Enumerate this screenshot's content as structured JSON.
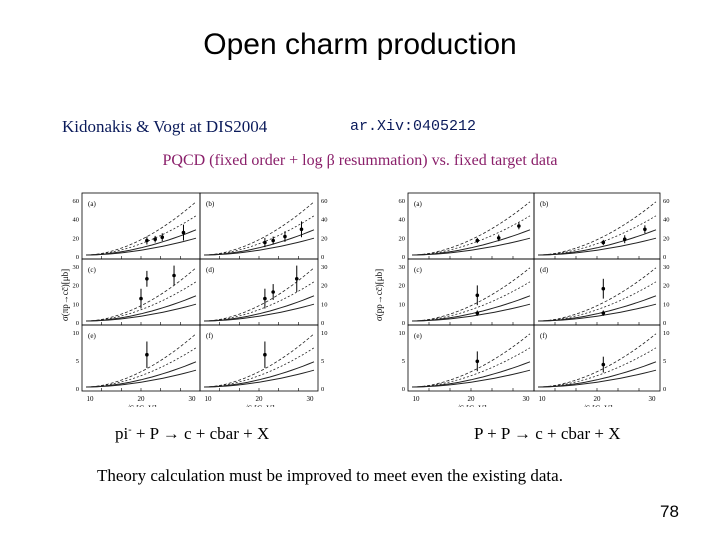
{
  "slide": {
    "title": "Open charm production",
    "authors": "Kidonakis & Vogt at DIS2004",
    "arxiv": "ar.Xiv:0405212",
    "subtitle_pre": "PQCD (fixed order + log ",
    "subtitle_beta": "β",
    "subtitle_post": " resummation) vs. fixed target data",
    "caption_left_a": "pi",
    "caption_left_sup": "-",
    "caption_left_b": " + P → c + cbar + X",
    "caption_right": "P + P → c + cbar + X",
    "conclusion": "Theory calculation must be improved to meet even the existing data.",
    "page_number": "78"
  },
  "figures": {
    "left": {
      "ylabel": "σ(πp→cc̄)[μb]",
      "xlabel": "√S  [GeV]",
      "panel_letters": [
        "(a)",
        "(b)",
        "(c)",
        "(d)",
        "(e)",
        "(f)"
      ],
      "x_ticks": [
        "10",
        "20",
        "30"
      ],
      "y_ticks_top": [
        "0",
        "20",
        "40",
        "60"
      ],
      "y_ticks_mid": [
        "0",
        "10",
        "20",
        "30"
      ],
      "y_ticks_bot": [
        "0",
        "5",
        "10"
      ]
    },
    "right": {
      "ylabel": "σ(pp→cc̄)[μb]",
      "xlabel": "√S  [GeV]",
      "panel_letters": [
        "(a)",
        "(b)",
        "(c)",
        "(d)",
        "(e)",
        "(f)"
      ],
      "x_ticks": [
        "10",
        "20",
        "30"
      ],
      "y_ticks_top": [
        "0",
        "20",
        "40",
        "60"
      ],
      "y_ticks_mid": [
        "0",
        "10",
        "20",
        "30"
      ],
      "y_ticks_bot": [
        "0",
        "5",
        "10"
      ]
    }
  }
}
